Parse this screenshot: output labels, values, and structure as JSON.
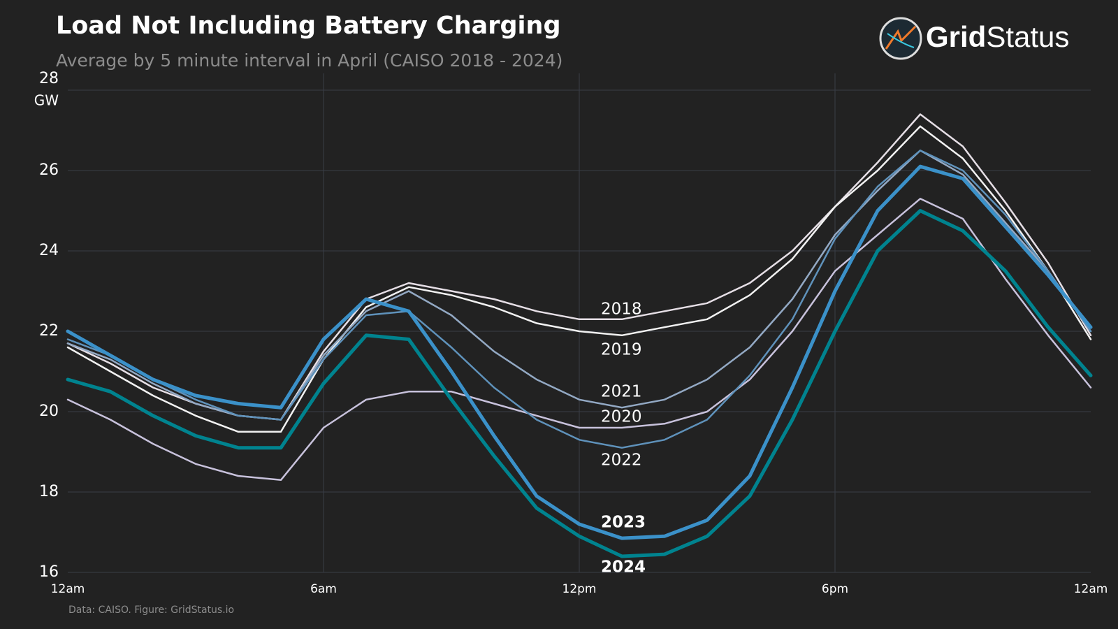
{
  "chart_data": {
    "type": "line",
    "title": "Load Not Including Battery Charging",
    "subtitle": "Average by 5 minute interval in April (CAISO 2018 - 2024)",
    "ylabel": "GW",
    "source": "Data: CAISO. Figure: GridStatus.io",
    "logo": {
      "bold": "Grid",
      "light": "Status"
    },
    "x": [
      0,
      1,
      2,
      3,
      4,
      5,
      6,
      7,
      8,
      9,
      10,
      11,
      12,
      13,
      14,
      15,
      16,
      17,
      18,
      19,
      20,
      21,
      22,
      23,
      24
    ],
    "xlim": [
      0,
      24
    ],
    "xticks": [
      {
        "value": 0,
        "label": "12am"
      },
      {
        "value": 6,
        "label": "6am"
      },
      {
        "value": 12,
        "label": "12pm"
      },
      {
        "value": 18,
        "label": "6pm"
      },
      {
        "value": 24,
        "label": "12am"
      }
    ],
    "ylim": [
      16,
      28
    ],
    "yticks": [
      16,
      18,
      20,
      22,
      24,
      26,
      28
    ],
    "grid": true,
    "series": [
      {
        "name": "2018",
        "color": "#e6dfe6",
        "line_width": 2.5,
        "values": [
          21.7,
          21.2,
          20.6,
          20.2,
          19.9,
          19.8,
          21.5,
          22.8,
          23.2,
          23.0,
          22.8,
          22.5,
          22.3,
          22.3,
          22.5,
          22.7,
          23.2,
          24.0,
          25.1,
          26.2,
          27.4,
          26.6,
          25.2,
          23.7,
          21.9
        ]
      },
      {
        "name": "2019",
        "color": "#f2f2f2",
        "line_width": 2.5,
        "values": [
          21.6,
          21.0,
          20.4,
          19.9,
          19.5,
          19.5,
          21.3,
          22.6,
          23.1,
          22.9,
          22.6,
          22.2,
          22.0,
          21.9,
          22.1,
          22.3,
          22.9,
          23.8,
          25.1,
          26.0,
          27.1,
          26.3,
          25.0,
          23.5,
          21.8
        ]
      },
      {
        "name": "2020",
        "color": "#c8c2dc",
        "line_width": 2.5,
        "values": [
          20.3,
          19.8,
          19.2,
          18.7,
          18.4,
          18.3,
          19.6,
          20.3,
          20.5,
          20.5,
          20.2,
          19.9,
          19.6,
          19.6,
          19.7,
          20.0,
          20.8,
          22.0,
          23.5,
          24.4,
          25.3,
          24.8,
          23.3,
          21.9,
          20.6
        ]
      },
      {
        "name": "2021",
        "color": "#93a9c4",
        "line_width": 2.5,
        "values": [
          21.7,
          21.3,
          20.7,
          20.2,
          19.9,
          19.8,
          21.4,
          22.5,
          23.0,
          22.4,
          21.5,
          20.8,
          20.3,
          20.1,
          20.3,
          20.8,
          21.6,
          22.8,
          24.4,
          25.5,
          26.5,
          25.9,
          24.7,
          23.5,
          22.0
        ]
      },
      {
        "name": "2022",
        "color": "#5f92bb",
        "line_width": 2.5,
        "values": [
          21.8,
          21.4,
          20.8,
          20.3,
          19.9,
          19.8,
          21.3,
          22.4,
          22.5,
          21.6,
          20.6,
          19.8,
          19.3,
          19.1,
          19.3,
          19.8,
          20.9,
          22.3,
          24.3,
          25.6,
          26.5,
          26.0,
          24.9,
          23.5,
          22.0
        ]
      },
      {
        "name": "2024",
        "color": "#00838f",
        "line_width": 5,
        "values": [
          20.8,
          20.5,
          19.9,
          19.4,
          19.1,
          19.1,
          20.7,
          21.9,
          21.8,
          20.3,
          18.9,
          17.6,
          16.9,
          16.4,
          16.45,
          16.9,
          17.9,
          19.8,
          22.0,
          24.0,
          25.0,
          24.5,
          23.5,
          22.1,
          20.9
        ]
      },
      {
        "name": "2023",
        "color": "#3b91c9",
        "line_width": 5,
        "values": [
          22.0,
          21.4,
          20.8,
          20.4,
          20.2,
          20.1,
          21.8,
          22.8,
          22.5,
          21.0,
          19.4,
          17.9,
          17.2,
          16.85,
          16.9,
          17.3,
          18.4,
          20.6,
          23.0,
          25.0,
          26.1,
          25.8,
          24.6,
          23.4,
          22.1
        ]
      }
    ]
  }
}
